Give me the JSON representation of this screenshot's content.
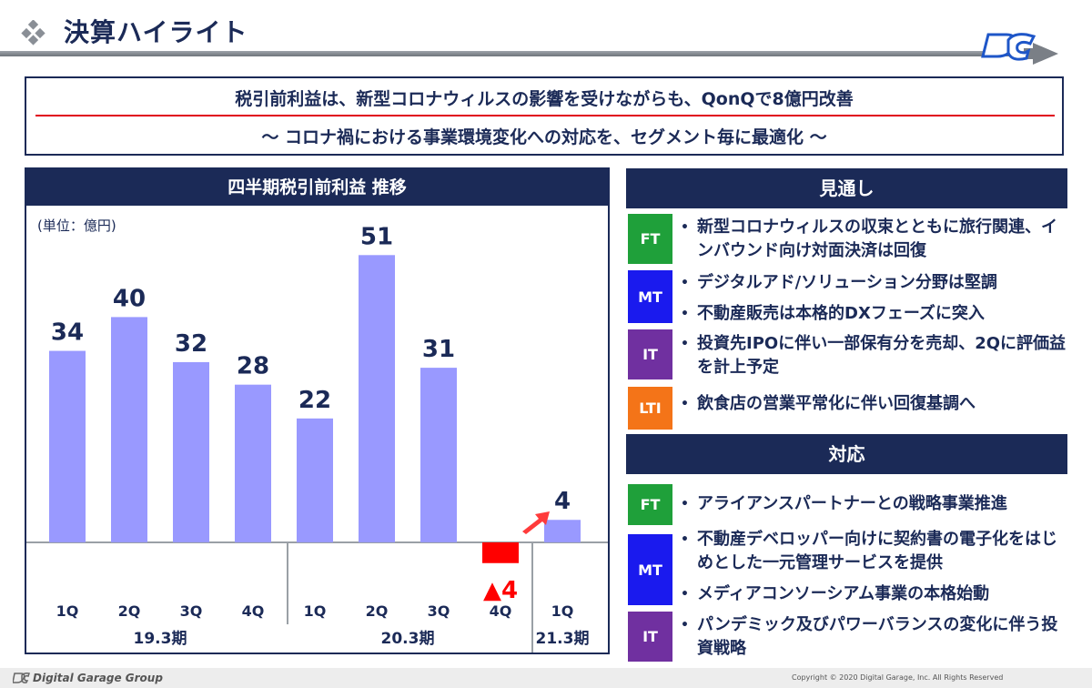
{
  "header": {
    "title": "決算ハイライト"
  },
  "summary": {
    "line1": "税引前利益は、新型コロナウィルスの影響を受けながらも、QonQで8億円改善",
    "line2": "～ コロナ禍における事業環境変化への対応を、セグメント毎に最適化 ～"
  },
  "chart_data": {
    "type": "bar",
    "title": "四半期税引前利益 推移",
    "unit": "(単位：億円)",
    "categories": [
      "1Q",
      "2Q",
      "3Q",
      "4Q",
      "1Q",
      "2Q",
      "3Q",
      "4Q",
      "1Q"
    ],
    "values": [
      34,
      40,
      32,
      28,
      22,
      51,
      31,
      -4,
      4
    ],
    "value_labels": [
      "34",
      "40",
      "32",
      "28",
      "22",
      "51",
      "31",
      "▲4",
      "4"
    ],
    "groups": [
      {
        "label": "19.3期",
        "start": 0,
        "end": 3
      },
      {
        "label": "20.3期",
        "start": 4,
        "end": 7
      },
      {
        "label": "21.3期",
        "start": 8,
        "end": 8
      }
    ],
    "ylim": [
      -5,
      55
    ],
    "bar_color": "#9999ff",
    "negative_color": "#ff0000",
    "grid": false
  },
  "outlook": {
    "title": "見通し",
    "items": [
      {
        "badge": "FT",
        "color": "#1fa03a",
        "bullets": [
          "新型コロナウィルスの収束とともに旅行関連、インバウンド向け対面決済は回復"
        ]
      },
      {
        "badge": "MT",
        "color": "#1a1aee",
        "bullets": [
          "デジタルアド/ソリューション分野は堅調",
          "不動産販売は本格的DXフェーズに突入"
        ]
      },
      {
        "badge": "IT",
        "color": "#7030a0",
        "bullets": [
          "投資先IPOに伴い一部保有分を売却、2Qに評価益を計上予定"
        ]
      },
      {
        "badge": "LTI",
        "color": "#f47418",
        "bullets": [
          "飲食店の営業平常化に伴い回復基調へ"
        ]
      }
    ]
  },
  "response": {
    "title": "対応",
    "items": [
      {
        "badge": "FT",
        "color": "#1fa03a",
        "bullets": [
          "アライアンスパートナーとの戦略事業推進"
        ]
      },
      {
        "badge": "MT",
        "color": "#1a1aee",
        "bullets": [
          "不動産デベロッパー向けに契約書の電子化をはじめとした一元管理サービスを提供",
          "メディアコンソーシアム事業の本格始動"
        ]
      },
      {
        "badge": "IT",
        "color": "#7030a0",
        "bullets": [
          "パンデミック及びパワーバランスの変化に伴う投資戦略"
        ]
      }
    ]
  },
  "footer": {
    "company": "Digital Garage Group",
    "copyright": "Copyright © 2020 Digital Garage, Inc. All Rights Reserved"
  }
}
